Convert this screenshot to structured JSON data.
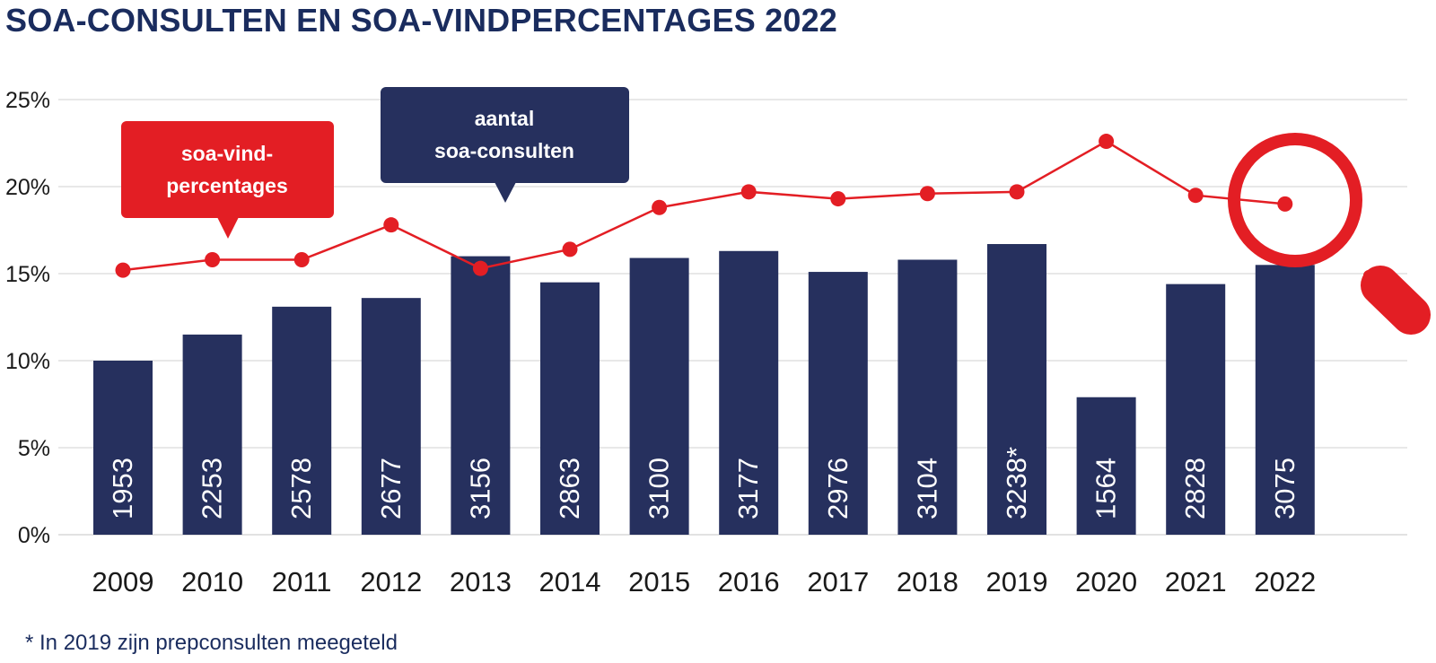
{
  "title": "SOA-CONSULTEN EN SOA-VINDPERCENTAGES 2022",
  "footnote": "* In 2019 zijn prepconsulten meegeteld",
  "callouts": {
    "line": [
      "soa-vind-",
      "percentages"
    ],
    "bars": [
      "aantal",
      "soa-consulten"
    ]
  },
  "colors": {
    "bar": "#26305e",
    "line": "#e31e24",
    "title": "#1a2c5e",
    "grid": "#d9d9d9",
    "axis_text": "#1a1a1a"
  },
  "chart_data": {
    "type": "bar",
    "categories": [
      "2009",
      "2010",
      "2011",
      "2012",
      "2013",
      "2014",
      "2015",
      "2016",
      "2017",
      "2018",
      "2019",
      "2020",
      "2021",
      "2022"
    ],
    "bar_labels": [
      "1953",
      "2253",
      "2578",
      "2677",
      "3156",
      "2863",
      "3100",
      "3177",
      "2976",
      "3104",
      "3238*",
      "1564",
      "2828",
      "3075"
    ],
    "series": [
      {
        "name": "aantal soa-consulten",
        "type": "bar",
        "values": [
          1953,
          2253,
          2578,
          2677,
          3156,
          2863,
          3100,
          3177,
          2976,
          3104,
          3238,
          1564,
          2828,
          3075
        ],
        "plotted_percent": [
          10.0,
          11.5,
          13.1,
          13.6,
          16.0,
          14.5,
          15.9,
          16.3,
          15.1,
          15.8,
          16.7,
          7.9,
          14.4,
          15.5
        ]
      },
      {
        "name": "soa-vind-percentages",
        "type": "line",
        "values": [
          15.2,
          15.8,
          15.8,
          17.8,
          15.3,
          16.4,
          18.8,
          19.7,
          19.3,
          19.6,
          19.7,
          22.6,
          19.5,
          19.0
        ]
      }
    ],
    "y_ticks": [
      "0%",
      "5%",
      "10%",
      "15%",
      "20%",
      "25%"
    ],
    "ylim": [
      0,
      25
    ],
    "grid": true,
    "icon": "magnifier-icon"
  }
}
